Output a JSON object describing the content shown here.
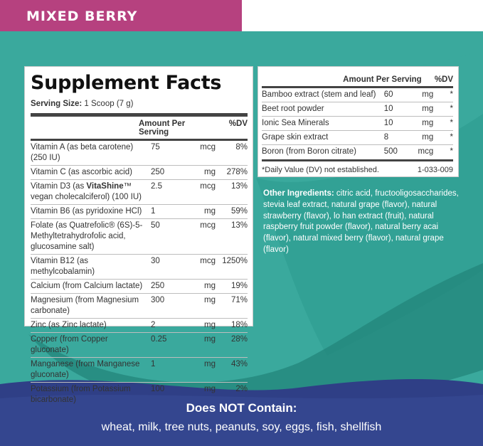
{
  "colors": {
    "teal": "#3aa99d",
    "teal_dark": "#23857b",
    "navy": "#2f3f86",
    "banner": "#b6417f"
  },
  "banner": {
    "flavor": "MIXED BERRY"
  },
  "facts": {
    "title": "Supplement Facts",
    "serving_label": "Serving Size:",
    "serving_value": "1 Scoop (7 g)",
    "header_amount": "Amount Per Serving",
    "header_dv": "%DV",
    "rows": [
      {
        "name": "Vitamin A (as beta carotene) (250 IU)",
        "amt": "75",
        "unit": "mcg",
        "dv": "8%"
      },
      {
        "name": "Vitamin C (as ascorbic acid)",
        "amt": "250",
        "unit": "mg",
        "dv": "278%"
      },
      {
        "name_html": "Vitamin D3 (as <b>VitaShine</b>™ vegan cholecalciferol) (100 IU)",
        "amt": "2.5",
        "unit": "mcg",
        "dv": "13%"
      },
      {
        "name": "Vitamin B6 (as pyridoxine HCl)",
        "amt": "1",
        "unit": "mg",
        "dv": "59%"
      },
      {
        "name": "Folate (as Quatrefolic® (6S)-5-Methyltetrahydrofolic acid, glucosamine salt)",
        "amt": "50",
        "unit": "mcg",
        "dv": "13%"
      },
      {
        "name": "Vitamin B12 (as methylcobalamin)",
        "amt": "30",
        "unit": "mcg",
        "dv": "1250%"
      },
      {
        "name": "Calcium (from Calcium lactate)",
        "amt": "250",
        "unit": "mg",
        "dv": "19%"
      },
      {
        "name": "Magnesium (from Magnesium carbonate)",
        "amt": "300",
        "unit": "mg",
        "dv": "71%"
      },
      {
        "name": "Zinc (as Zinc lactate)",
        "amt": "2",
        "unit": "mg",
        "dv": "18%"
      },
      {
        "name": "Copper (from Copper gluconate)",
        "amt": "0.25",
        "unit": "mg",
        "dv": "28%"
      },
      {
        "name": "Manganese (from Manganese gluconate)",
        "amt": "1",
        "unit": "mg",
        "dv": "43%"
      },
      {
        "name": "Potassium (from Potassium bicarbonate)",
        "amt": "100",
        "unit": "mg",
        "dv": "2%"
      }
    ]
  },
  "facts2": {
    "header_amount": "Amount Per Serving",
    "header_dv": "%DV",
    "rows": [
      {
        "name": "Bamboo extract (stem and leaf)",
        "amt": "60",
        "unit": "mg",
        "dv": "*"
      },
      {
        "name": "Beet root powder",
        "amt": "10",
        "unit": "mg",
        "dv": "*"
      },
      {
        "name": "Ionic Sea Minerals",
        "amt": "10",
        "unit": "mg",
        "dv": "*"
      },
      {
        "name": "Grape skin extract",
        "amt": "8",
        "unit": "mg",
        "dv": "*"
      },
      {
        "name": "Boron (from Boron citrate)",
        "amt": "500",
        "unit": "mcg",
        "dv": "*"
      }
    ],
    "footnote": "*Daily Value (DV) not established.",
    "code": "1-033-009"
  },
  "other_ingredients": {
    "label": "Other Ingredients:",
    "text": "citric acid, fructooligosaccharides, stevia leaf extract, natural grape (flavor), natural strawberry (flavor), lo han extract (fruit), natural raspberry fruit powder (flavor), natural berry acai (flavor), natural mixed berry (flavor), natural grape (flavor)"
  },
  "does_not_contain": {
    "title": "Does NOT Contain:",
    "list": "wheat, milk, tree nuts, peanuts, soy, eggs, fish, shellfish"
  }
}
